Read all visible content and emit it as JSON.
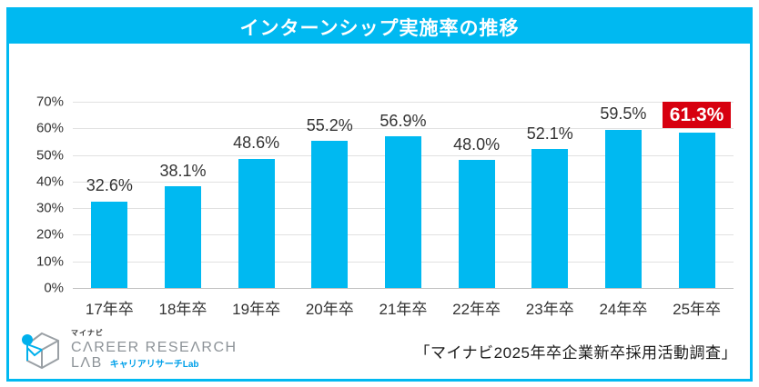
{
  "accent_color": "#00b9f1",
  "header": {
    "title": "インターンシップ実施率の推移"
  },
  "chart_data": {
    "type": "bar",
    "title": "インターンシップ実施率の推移",
    "categories": [
      "17年卒",
      "18年卒",
      "19年卒",
      "20年卒",
      "21年卒",
      "22年卒",
      "23年卒",
      "24年卒",
      "25年卒"
    ],
    "values": [
      32.6,
      38.1,
      48.6,
      55.2,
      56.9,
      48.0,
      52.1,
      59.5,
      61.3
    ],
    "value_labels": [
      "32.6%",
      "38.1%",
      "48.6%",
      "55.2%",
      "56.9%",
      "48.0%",
      "52.1%",
      "59.5%",
      "61.3%"
    ],
    "highlight_index": 8,
    "highlight_color": "#d7000f",
    "bar_color": "#00b9f1",
    "xlabel": "",
    "ylabel": "",
    "ylim": [
      0,
      70
    ],
    "ytick_step": 10,
    "yticks": [
      "70%",
      "60%",
      "50%",
      "40%",
      "30%",
      "20%",
      "10%",
      "0%"
    ],
    "grid": true,
    "legend": "none"
  },
  "footer": {
    "logo": {
      "brand_small": "マイナビ",
      "brand_line1": "CΛREER RESEΛRCH",
      "brand_line2": "LΛB",
      "brand_sub": "キャリアリサーチLab"
    },
    "source": "「マイナビ2025年卒企業新卒採用活動調査」"
  }
}
